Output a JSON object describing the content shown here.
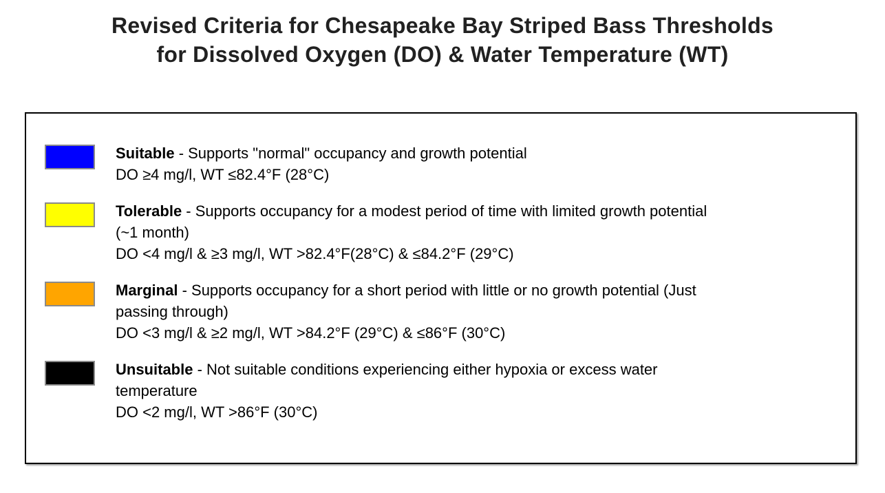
{
  "title": {
    "line1": "Revised Criteria for Chesapeake Bay Striped Bass Thresholds",
    "line2": "for Dissolved Oxygen (DO) & Water Temperature (WT)"
  },
  "legend": {
    "items": [
      {
        "name": "Suitable",
        "color": "#0000ff",
        "color_name": "blue",
        "desc_line1": " - Supports \"normal\" occupancy and growth potential",
        "criteria": "DO ≥4 mg/l, WT ≤82.4°F (28°C)"
      },
      {
        "name": "Tolerable",
        "color": "#ffff00",
        "color_name": "yellow",
        "desc_line1": " - Supports occupancy for a modest period of time with limited growth potential",
        "desc_line2": "(~1 month)",
        "criteria": "DO <4 mg/l & ≥3 mg/l, WT >82.4°F(28°C) & ≤84.2°F (29°C)"
      },
      {
        "name": "Marginal",
        "color": "#ffa500",
        "color_name": "orange",
        "desc_line1": " - Supports occupancy for a short period with little or no growth potential (Just",
        "desc_line2": "passing through)",
        "criteria": "DO <3 mg/l & ≥2 mg/l, WT >84.2°F (29°C) & ≤86°F (30°C)"
      },
      {
        "name": "Unsuitable",
        "color": "#000000",
        "color_name": "black",
        "desc_line1": " - Not suitable conditions experiencing either hypoxia or excess water",
        "desc_line2": "temperature",
        "criteria": "DO <2 mg/l, WT >86°F (30°C)"
      }
    ]
  }
}
